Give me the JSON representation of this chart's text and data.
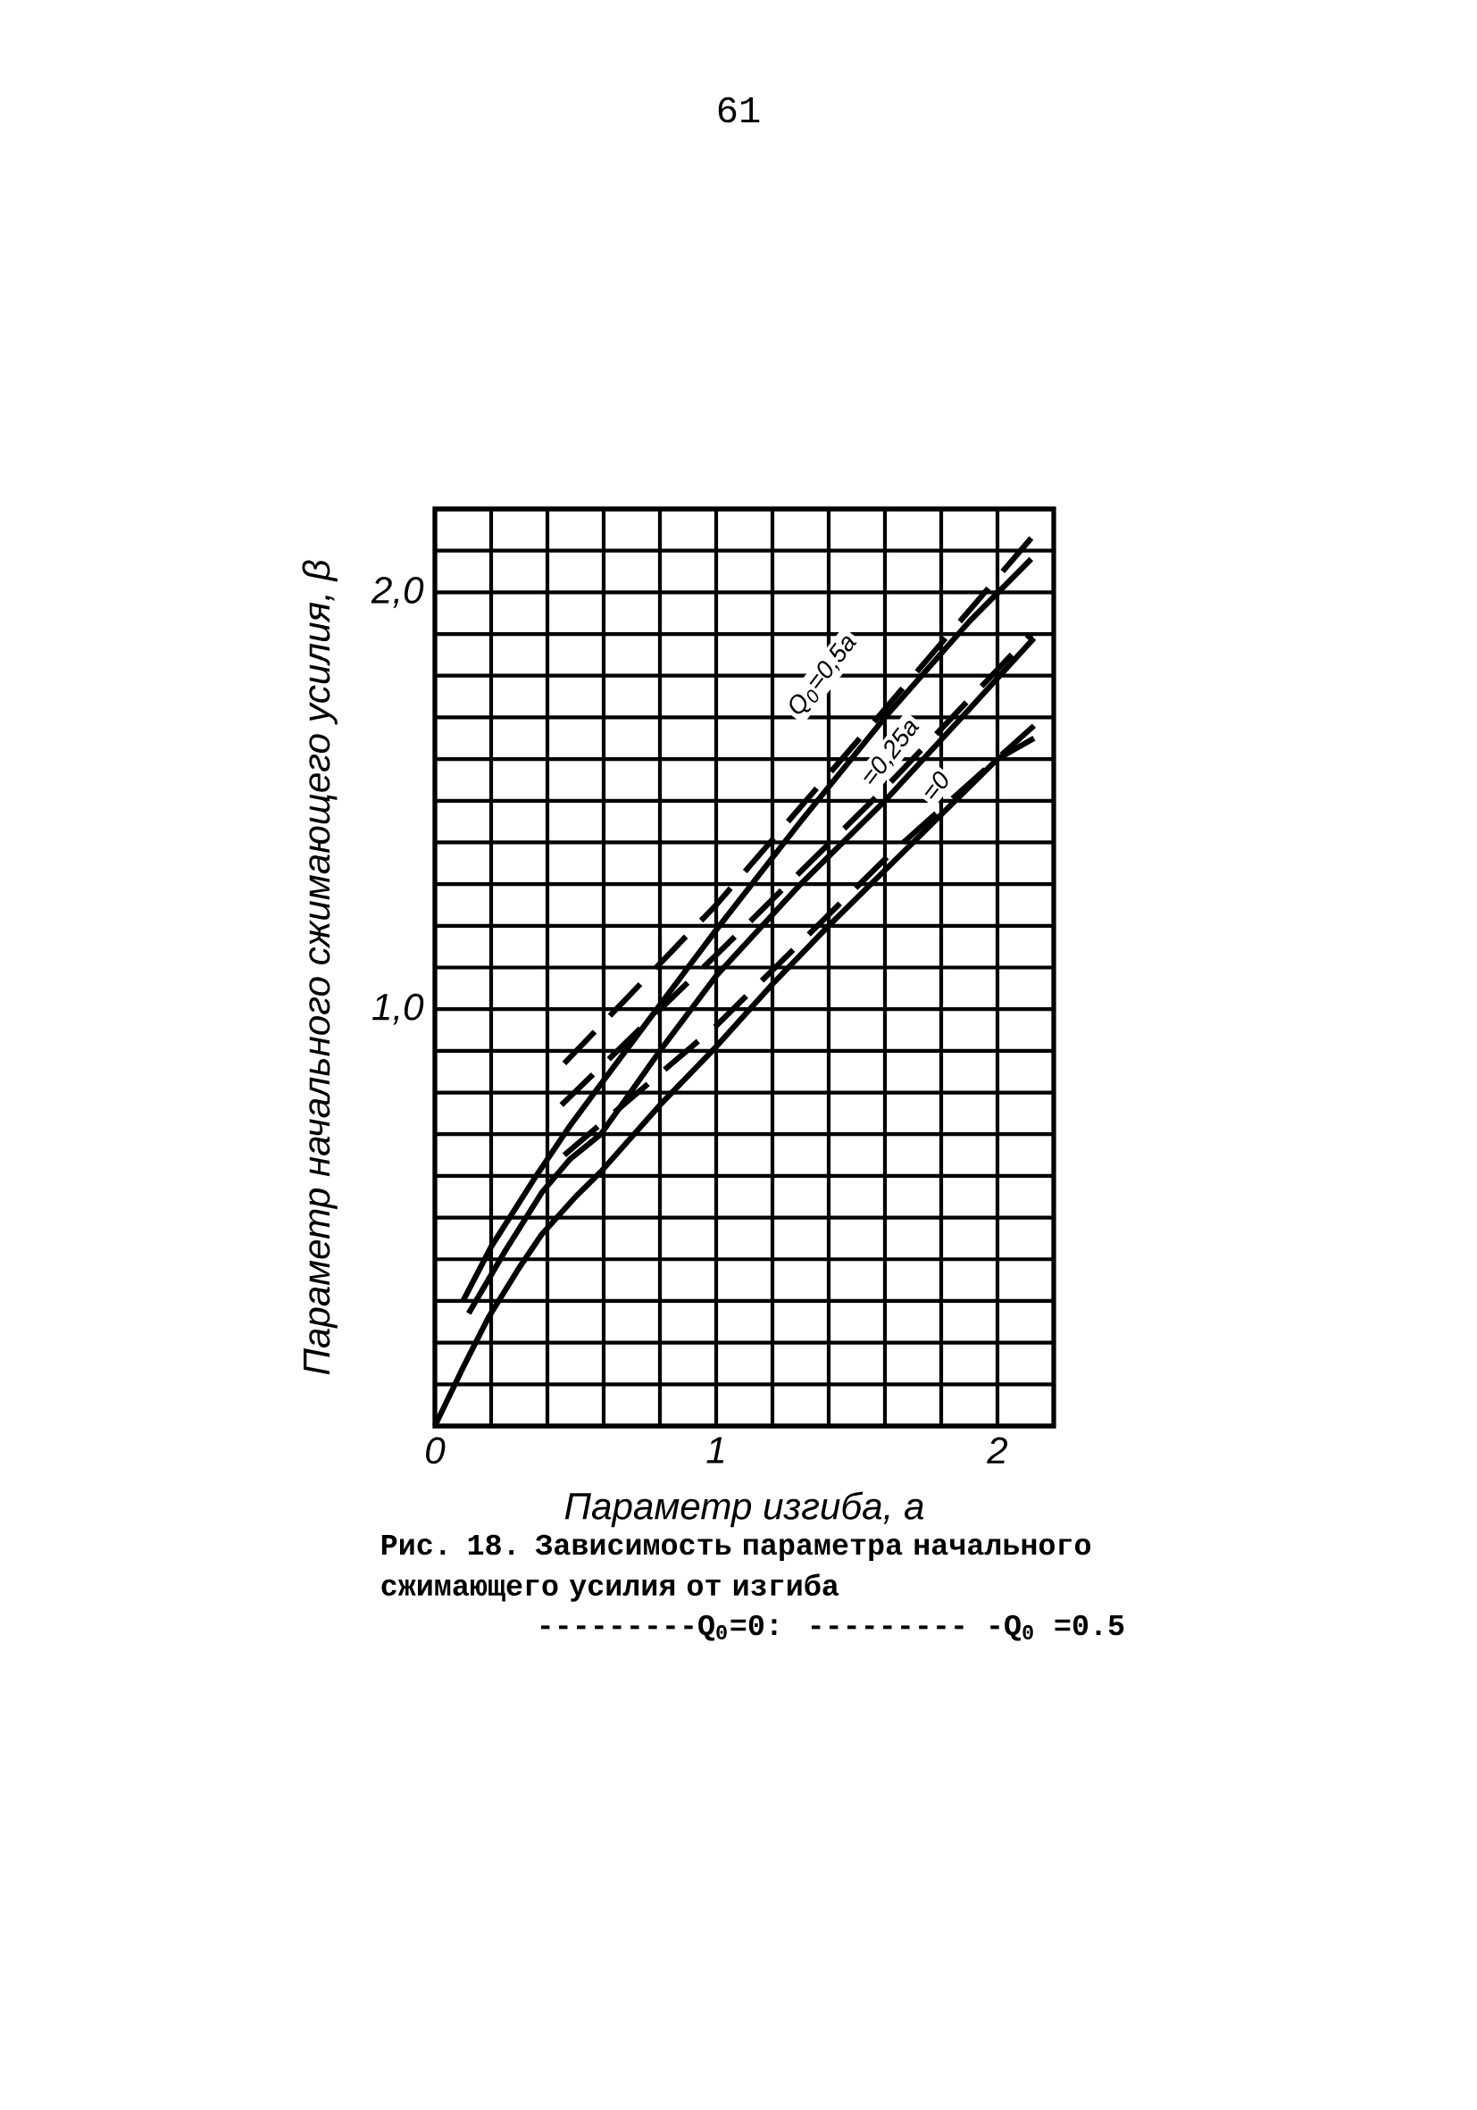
{
  "chart_data": {
    "type": "line",
    "xlabel": "Параметр изгиба, a",
    "ylabel": "Параметр начального сжимающего усилия, β",
    "xlim": [
      0,
      2.2
    ],
    "ylim": [
      0,
      2.2
    ],
    "xticks": [
      {
        "value": 0,
        "label": "0"
      },
      {
        "value": 0.2,
        "label": null
      },
      {
        "value": 0.4,
        "label": null
      },
      {
        "value": 0.6,
        "label": null
      },
      {
        "value": 0.8,
        "label": null
      },
      {
        "value": 1,
        "label": "1"
      },
      {
        "value": 1.2,
        "label": null
      },
      {
        "value": 1.4,
        "label": null
      },
      {
        "value": 1.6,
        "label": null
      },
      {
        "value": 1.8,
        "label": null
      },
      {
        "value": 2,
        "label": "2"
      }
    ],
    "yticks": [
      {
        "value": 0.1,
        "label": null
      },
      {
        "value": 0.2,
        "label": null
      },
      {
        "value": 0.3,
        "label": null
      },
      {
        "value": 0.4,
        "label": null
      },
      {
        "value": 0.5,
        "label": null
      },
      {
        "value": 0.6,
        "label": null
      },
      {
        "value": 0.7,
        "label": null
      },
      {
        "value": 0.8,
        "label": null
      },
      {
        "value": 0.9,
        "label": null
      },
      {
        "value": 1,
        "label": "1,0"
      },
      {
        "value": 1.1,
        "label": null
      },
      {
        "value": 1.2,
        "label": null
      },
      {
        "value": 1.3,
        "label": null
      },
      {
        "value": 1.4,
        "label": null
      },
      {
        "value": 1.5,
        "label": null
      },
      {
        "value": 1.6,
        "label": null
      },
      {
        "value": 1.7,
        "label": null
      },
      {
        "value": 1.8,
        "label": null
      },
      {
        "value": 1.9,
        "label": null
      },
      {
        "value": 2,
        "label": "2,0"
      },
      {
        "value": 2.1,
        "label": null
      }
    ],
    "grid": true,
    "series": [
      {
        "color": "#000000",
        "line_style": "solid",
        "x": [
          0,
          0.1,
          0.19,
          0.3,
          0.38,
          0.5,
          0.59,
          0.8,
          1.0,
          1.2,
          1.4,
          1.7,
          2.0,
          2.13
        ],
        "values": [
          0,
          0.14,
          0.26,
          0.38,
          0.46,
          0.55,
          0.61,
          0.77,
          0.91,
          1.06,
          1.2,
          1.4,
          1.6,
          1.65
        ]
      },
      {
        "color": "#000000",
        "line_style": "solid",
        "x": [
          0.12,
          0.25,
          0.38,
          0.48,
          0.59,
          0.8,
          1.0,
          1.3,
          1.6,
          1.9,
          2.13
        ],
        "values": [
          0.27,
          0.42,
          0.56,
          0.64,
          0.7,
          0.9,
          1.08,
          1.3,
          1.5,
          1.72,
          1.89
        ]
      },
      {
        "color": "#000000",
        "line_style": "solid",
        "x": [
          0.1,
          0.2,
          0.36,
          0.48,
          0.59,
          0.8,
          1.0,
          1.3,
          1.6,
          1.9,
          2.12
        ],
        "values": [
          0.3,
          0.43,
          0.6,
          0.72,
          0.82,
          1.01,
          1.19,
          1.45,
          1.7,
          1.93,
          2.08
        ]
      },
      {
        "color": "#000000",
        "line_style": "dashed",
        "x": [
          0.46,
          1.0,
          1.6,
          2.13
        ],
        "values": [
          0.65,
          0.96,
          1.36,
          1.68
        ]
      },
      {
        "color": "#000000",
        "line_style": "dashed",
        "x": [
          0.45,
          1.0,
          1.6,
          2.12
        ],
        "values": [
          0.77,
          1.13,
          1.53,
          1.9
        ]
      },
      {
        "color": "#000000",
        "line_style": "dashed",
        "x": [
          0.46,
          1.0,
          1.6,
          2.12
        ],
        "values": [
          0.87,
          1.25,
          1.72,
          2.13
        ]
      }
    ],
    "annotations": [
      "Q$_{0}$=0,5a",
      "=0,25a",
      "=0",
      "Рис. 18. Зависимость параметра начального сжимающего усилия от изгиба",
      "---------Q$_{0}$=0: --------- -Q$_{0}$ =0.5",
      "61"
    ]
  }
}
